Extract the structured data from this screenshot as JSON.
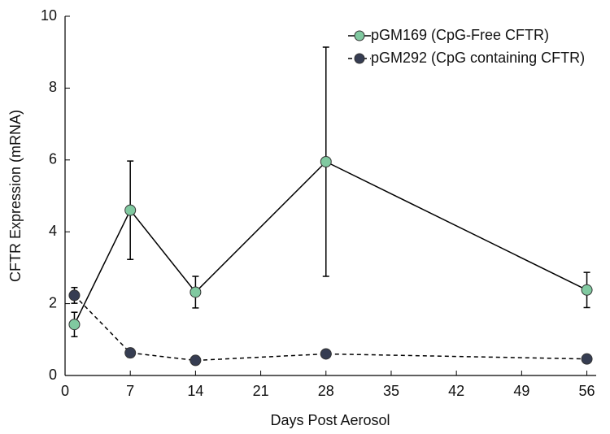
{
  "chart_data": {
    "type": "line",
    "x_label": "Days Post Aerosol",
    "y_label": "CFTR Expression (mRNA)",
    "x": [
      1,
      7,
      14,
      28,
      56
    ],
    "series": [
      {
        "name": "pGM169 (CpG-Free CFTR)",
        "color": "#80c9a0",
        "line_style": "solid",
        "values": [
          1.42,
          4.6,
          2.32,
          5.95,
          2.38
        ],
        "errors": [
          0.34,
          1.37,
          0.44,
          3.19,
          0.49
        ]
      },
      {
        "name": "pGM292 (CpG containing CFTR)",
        "color": "#363d52",
        "line_style": "dashed",
        "values": [
          2.23,
          0.63,
          0.42,
          0.6,
          0.46
        ],
        "errors": [
          0.22,
          0.12,
          0.05,
          0.05,
          0.05
        ]
      }
    ],
    "xlim": [
      0,
      57
    ],
    "xticks": [
      0,
      7,
      14,
      21,
      28,
      35,
      42,
      49,
      56
    ],
    "ylim": [
      0,
      10
    ],
    "yticks": [
      0,
      2,
      4,
      6,
      8,
      10
    ],
    "legend_position": "top-right"
  }
}
